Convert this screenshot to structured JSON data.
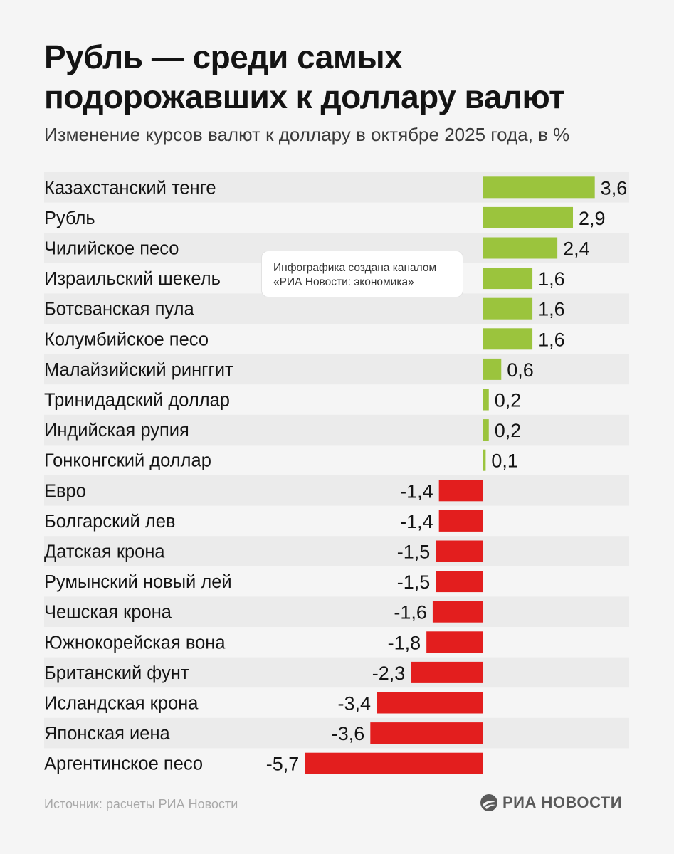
{
  "header": {
    "title_line1": "Рубль — среди самых",
    "title_line2": "подорожавших к доллару валют",
    "subtitle": "Изменение курсов валют к доллару в октябре 2025 года, в %"
  },
  "watermark": {
    "line1": "Инфографика создана каналом",
    "line2": "«РИА Новости: экономика»"
  },
  "footer": {
    "source": "Источник: расчеты РИА Новости",
    "logo": "РИА НОВОСТИ",
    "logo_icon": "ria-logo-icon"
  },
  "colors": {
    "positive": "#9bc43d",
    "negative": "#e31e1e",
    "stripe": "#ebebeb",
    "background": "#f5f5f5"
  },
  "chart_data": {
    "type": "bar",
    "orientation": "horizontal",
    "title": "Рубль — среди самых подорожавших к доллару валют",
    "subtitle": "Изменение курсов валют к доллару в октябре 2025 года, в %",
    "grid": false,
    "categories": [
      "Казахстанский тенге",
      "Рубль",
      "Чилийское песо",
      "Израильский шекель",
      "Ботсванская пула",
      "Колумбийское песо",
      "Малайзийский ринггит",
      "Тринидадский доллар",
      "Индийская рупия",
      "Гонконгский доллар",
      "Евро",
      "Болгарский лев",
      "Датская крона",
      "Румынский новый лей",
      "Чешская крона",
      "Южнокорейская вона",
      "Британский фунт",
      "Исландская крона",
      "Японская иена",
      "Аргентинское песо"
    ],
    "values": [
      3.6,
      2.9,
      2.4,
      1.6,
      1.6,
      1.6,
      0.6,
      0.2,
      0.2,
      0.1,
      -1.4,
      -1.4,
      -1.5,
      -1.5,
      -1.6,
      -1.8,
      -2.3,
      -3.4,
      -3.6,
      -5.7
    ],
    "value_labels": [
      "3,6",
      "2,9",
      "2,4",
      "1,6",
      "1,6",
      "1,6",
      "0,6",
      "0,2",
      "0,2",
      "0,1",
      "-1,4",
      "-1,4",
      "-1,5",
      "-1,5",
      "-1,6",
      "-1,8",
      "-2,3",
      "-3,4",
      "-3,6",
      "-5,7"
    ]
  }
}
